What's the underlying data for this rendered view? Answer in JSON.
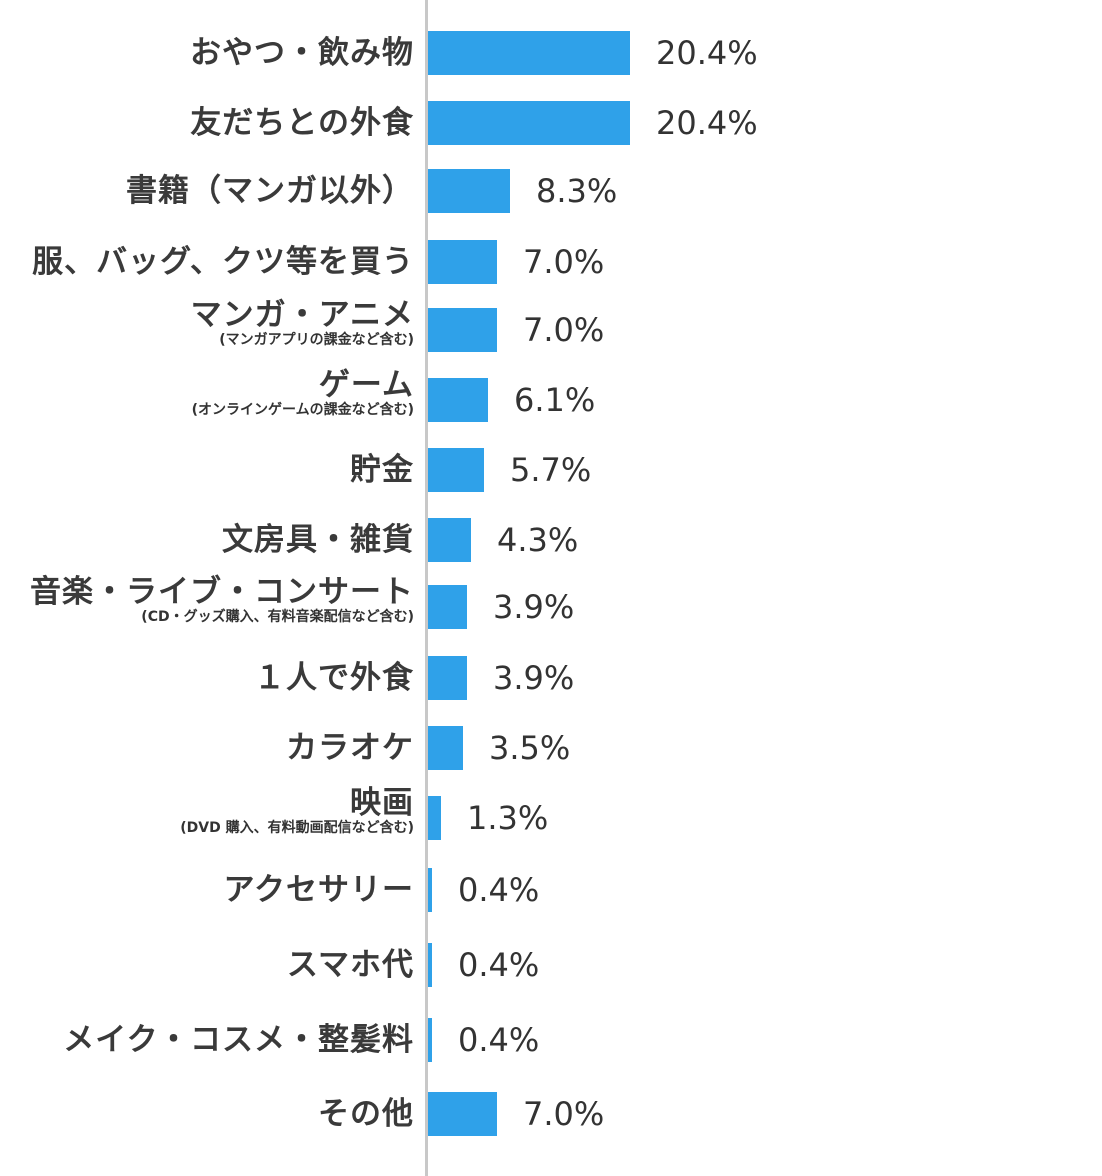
{
  "chart_data": {
    "type": "bar",
    "orientation": "horizontal",
    "categories": [
      {
        "label": "おやつ・飲み物",
        "sub": ""
      },
      {
        "label": "友だちとの外食",
        "sub": ""
      },
      {
        "label": "書籍（マンガ以外）",
        "sub": ""
      },
      {
        "label": "服、バッグ、クツ等を買う",
        "sub": ""
      },
      {
        "label": "マンガ・アニメ",
        "sub": "(マンガアプリの課金など含む)"
      },
      {
        "label": "ゲーム",
        "sub": "(オンラインゲームの課金など含む)"
      },
      {
        "label": "貯金",
        "sub": ""
      },
      {
        "label": "文房具・雑貨",
        "sub": ""
      },
      {
        "label": "音楽・ライブ・コンサート",
        "sub": "(CD・グッズ購入、有料音楽配信など含む)"
      },
      {
        "label": "１人で外食",
        "sub": ""
      },
      {
        "label": "カラオケ",
        "sub": ""
      },
      {
        "label": "映画",
        "sub": "(DVD 購入、有料動画配信など含む)"
      },
      {
        "label": "アクセサリー",
        "sub": ""
      },
      {
        "label": "スマホ代",
        "sub": ""
      },
      {
        "label": "メイク・コスメ・整髪料",
        "sub": ""
      },
      {
        "label": "その他",
        "sub": ""
      }
    ],
    "values": [
      20.4,
      20.4,
      8.3,
      7.0,
      7.0,
      6.1,
      5.7,
      4.3,
      3.9,
      3.9,
      3.5,
      1.3,
      0.4,
      0.4,
      0.4,
      7.0
    ],
    "value_labels": [
      "20.4%",
      "20.4%",
      "8.3%",
      "7.0%",
      "7.0%",
      "6.1%",
      "5.7%",
      "4.3%",
      "3.9%",
      "3.9%",
      "3.5%",
      "1.3%",
      "0.4%",
      "0.4%",
      "0.4%",
      "7.0%"
    ],
    "xlim": [
      0,
      100
    ],
    "bar_color": "#2fa1e9",
    "grid": false,
    "legend": "none"
  }
}
